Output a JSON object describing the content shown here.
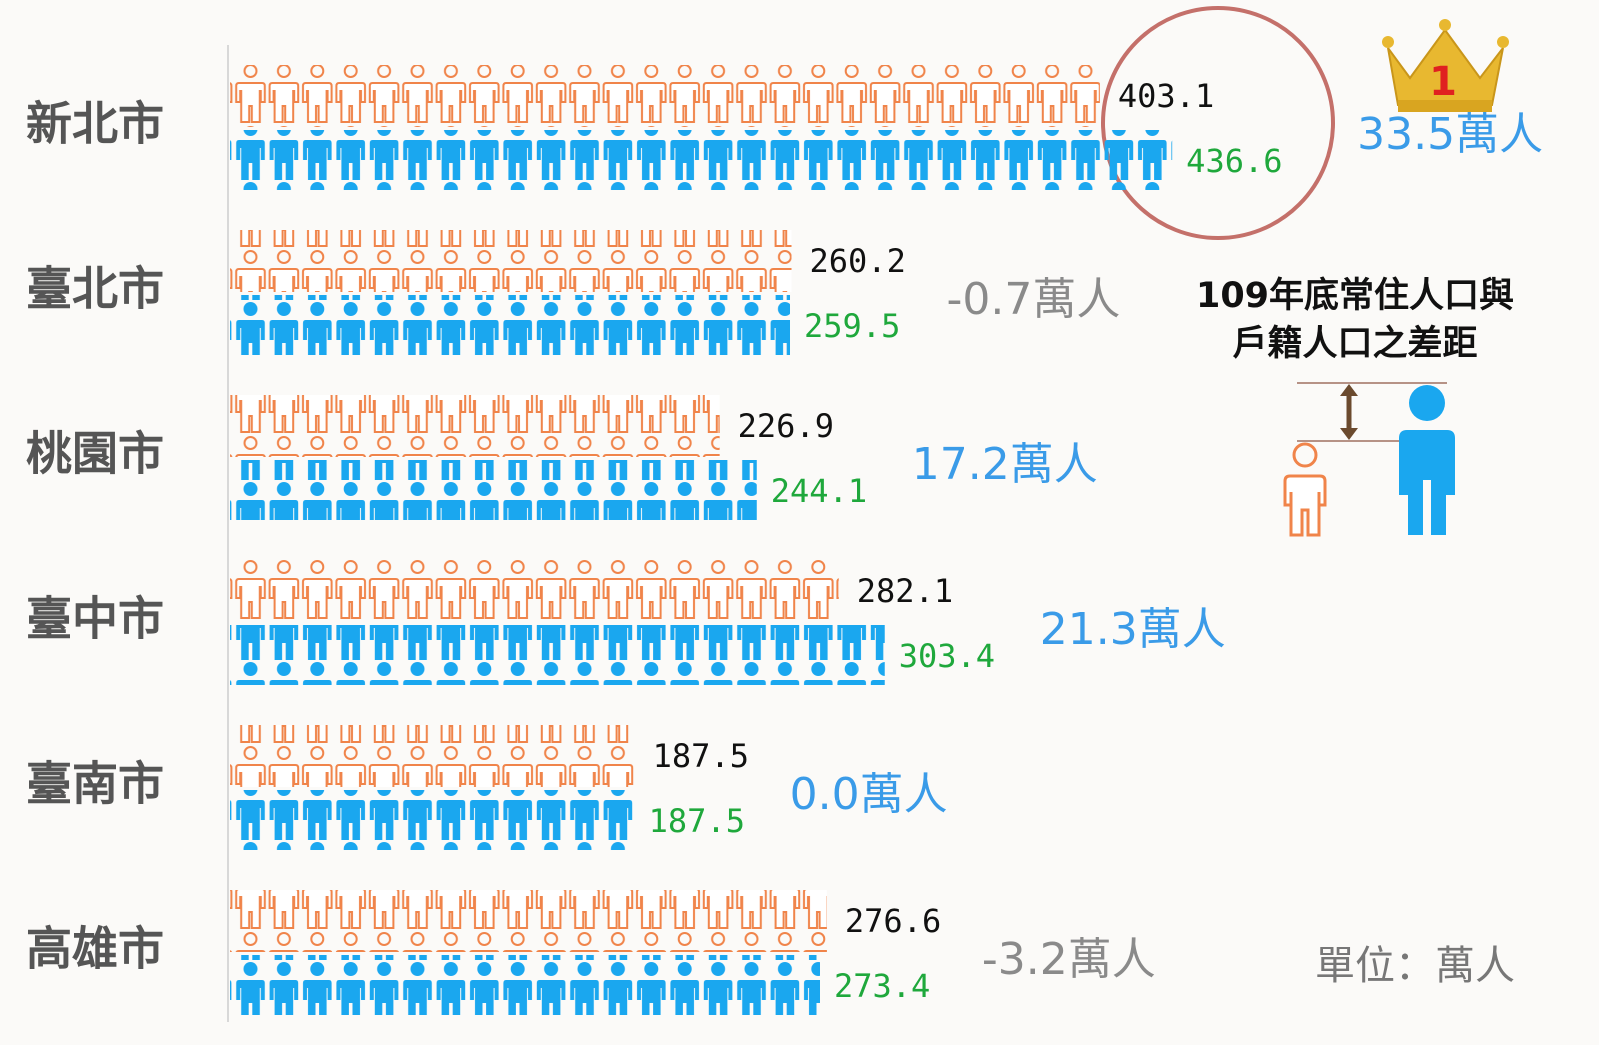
{
  "chart_data": {
    "type": "pictograph",
    "categories": [
      "新北市",
      "臺北市",
      "桃園市",
      "臺中市",
      "臺南市",
      "高雄市"
    ],
    "series": [
      {
        "color": "#f0844a",
        "values": [
          403.1,
          260.2,
          226.9,
          282.1,
          187.5,
          276.6
        ]
      },
      {
        "color": "#1aa7ef",
        "values": [
          436.6,
          259.5,
          244.1,
          303.4,
          187.5,
          273.4
        ]
      }
    ],
    "value_label_colors": [
      "#111111",
      "#1fa83c"
    ],
    "differences": {
      "values": [
        33.5,
        -0.7,
        17.2,
        21.3,
        0.0,
        -3.2
      ],
      "value_labels": [
        "33.5萬人",
        "-0.7萬人",
        "17.2萬人",
        "21.3萬人",
        "0.0萬人",
        "-3.2萬人"
      ],
      "positive_color": "#3a9be8",
      "negative_color": "#8a8a8a"
    },
    "rank_label": "1",
    "legend_title": [
      "109年底常住人口與",
      "戶籍人口之差距"
    ],
    "unit": "單位：萬人"
  }
}
